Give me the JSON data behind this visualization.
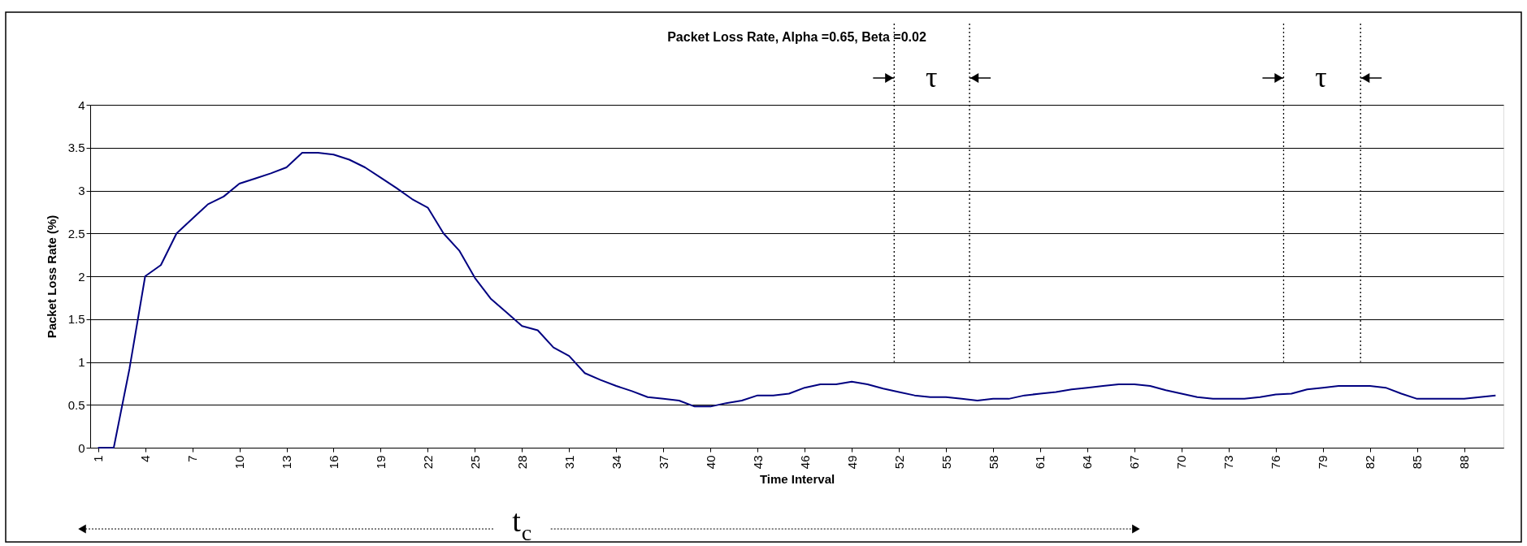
{
  "chart_data": {
    "type": "line",
    "title": "Packet Loss Rate, Alpha =0.65, Beta =0.02",
    "xlabel": "Time Interval",
    "ylabel": "Packet Loss Rate (%)",
    "x": [
      1,
      2,
      3,
      4,
      5,
      6,
      7,
      8,
      9,
      10,
      11,
      12,
      13,
      14,
      15,
      16,
      17,
      18,
      19,
      20,
      21,
      22,
      23,
      24,
      25,
      26,
      27,
      28,
      29,
      30,
      31,
      32,
      33,
      34,
      35,
      36,
      37,
      38,
      39,
      40,
      41,
      42,
      43,
      44,
      45,
      46,
      47,
      48,
      49,
      50,
      51,
      52,
      53,
      54,
      55,
      56,
      57,
      58,
      59,
      60,
      61,
      62,
      63,
      64,
      65,
      66,
      67,
      68,
      69,
      70,
      71,
      72,
      73,
      74,
      75,
      76,
      77,
      78,
      79,
      80,
      81,
      82,
      83,
      84,
      85,
      86,
      87,
      88,
      89,
      90
    ],
    "series": [
      {
        "color": "#000080",
        "values": [
          0,
          0,
          0.92,
          2.0,
          2.13,
          2.5,
          2.67,
          2.84,
          2.93,
          3.08,
          3.14,
          3.2,
          3.27,
          3.44,
          3.44,
          3.42,
          3.36,
          3.27,
          3.15,
          3.03,
          2.9,
          2.8,
          2.5,
          2.3,
          1.98,
          1.74,
          1.58,
          1.42,
          1.37,
          1.17,
          1.07,
          0.87,
          0.79,
          0.72,
          0.66,
          0.59,
          0.57,
          0.55,
          0.48,
          0.48,
          0.52,
          0.55,
          0.61,
          0.61,
          0.63,
          0.7,
          0.74,
          0.74,
          0.77,
          0.74,
          0.69,
          0.65,
          0.61,
          0.59,
          0.59,
          0.57,
          0.55,
          0.57,
          0.57,
          0.61,
          0.63,
          0.65,
          0.68,
          0.7,
          0.72,
          0.74,
          0.74,
          0.72,
          0.67,
          0.63,
          0.59,
          0.57,
          0.57,
          0.57,
          0.59,
          0.62,
          0.63,
          0.68,
          0.7,
          0.72,
          0.72,
          0.72,
          0.7,
          0.63,
          0.57,
          0.57,
          0.57,
          0.57,
          0.59,
          0.61
        ]
      }
    ],
    "xlim": [
      0.5,
      90.5
    ],
    "xticks": [
      1,
      4,
      7,
      10,
      13,
      16,
      19,
      22,
      25,
      28,
      31,
      34,
      37,
      40,
      43,
      46,
      49,
      52,
      55,
      58,
      61,
      64,
      67,
      70,
      73,
      76,
      79,
      82,
      85,
      88
    ],
    "ylim": [
      0,
      4
    ],
    "yticks": [
      0,
      0.5,
      1,
      1.5,
      2,
      2.5,
      3,
      3.5,
      4
    ],
    "grid": "y",
    "marker": "none",
    "line_style": "solid",
    "ref_lines": [
      {
        "axis": "x",
        "value": 51.7,
        "label": "τ",
        "line_style": "dotted"
      },
      {
        "axis": "x",
        "value": 56.5,
        "line_style": "dotted"
      },
      {
        "axis": "x",
        "value": 76.5,
        "label": "τ",
        "line_style": "dotted"
      },
      {
        "axis": "x",
        "value": 81.4,
        "line_style": "dotted"
      }
    ],
    "annotations": [
      "t$_{c}$"
    ]
  }
}
